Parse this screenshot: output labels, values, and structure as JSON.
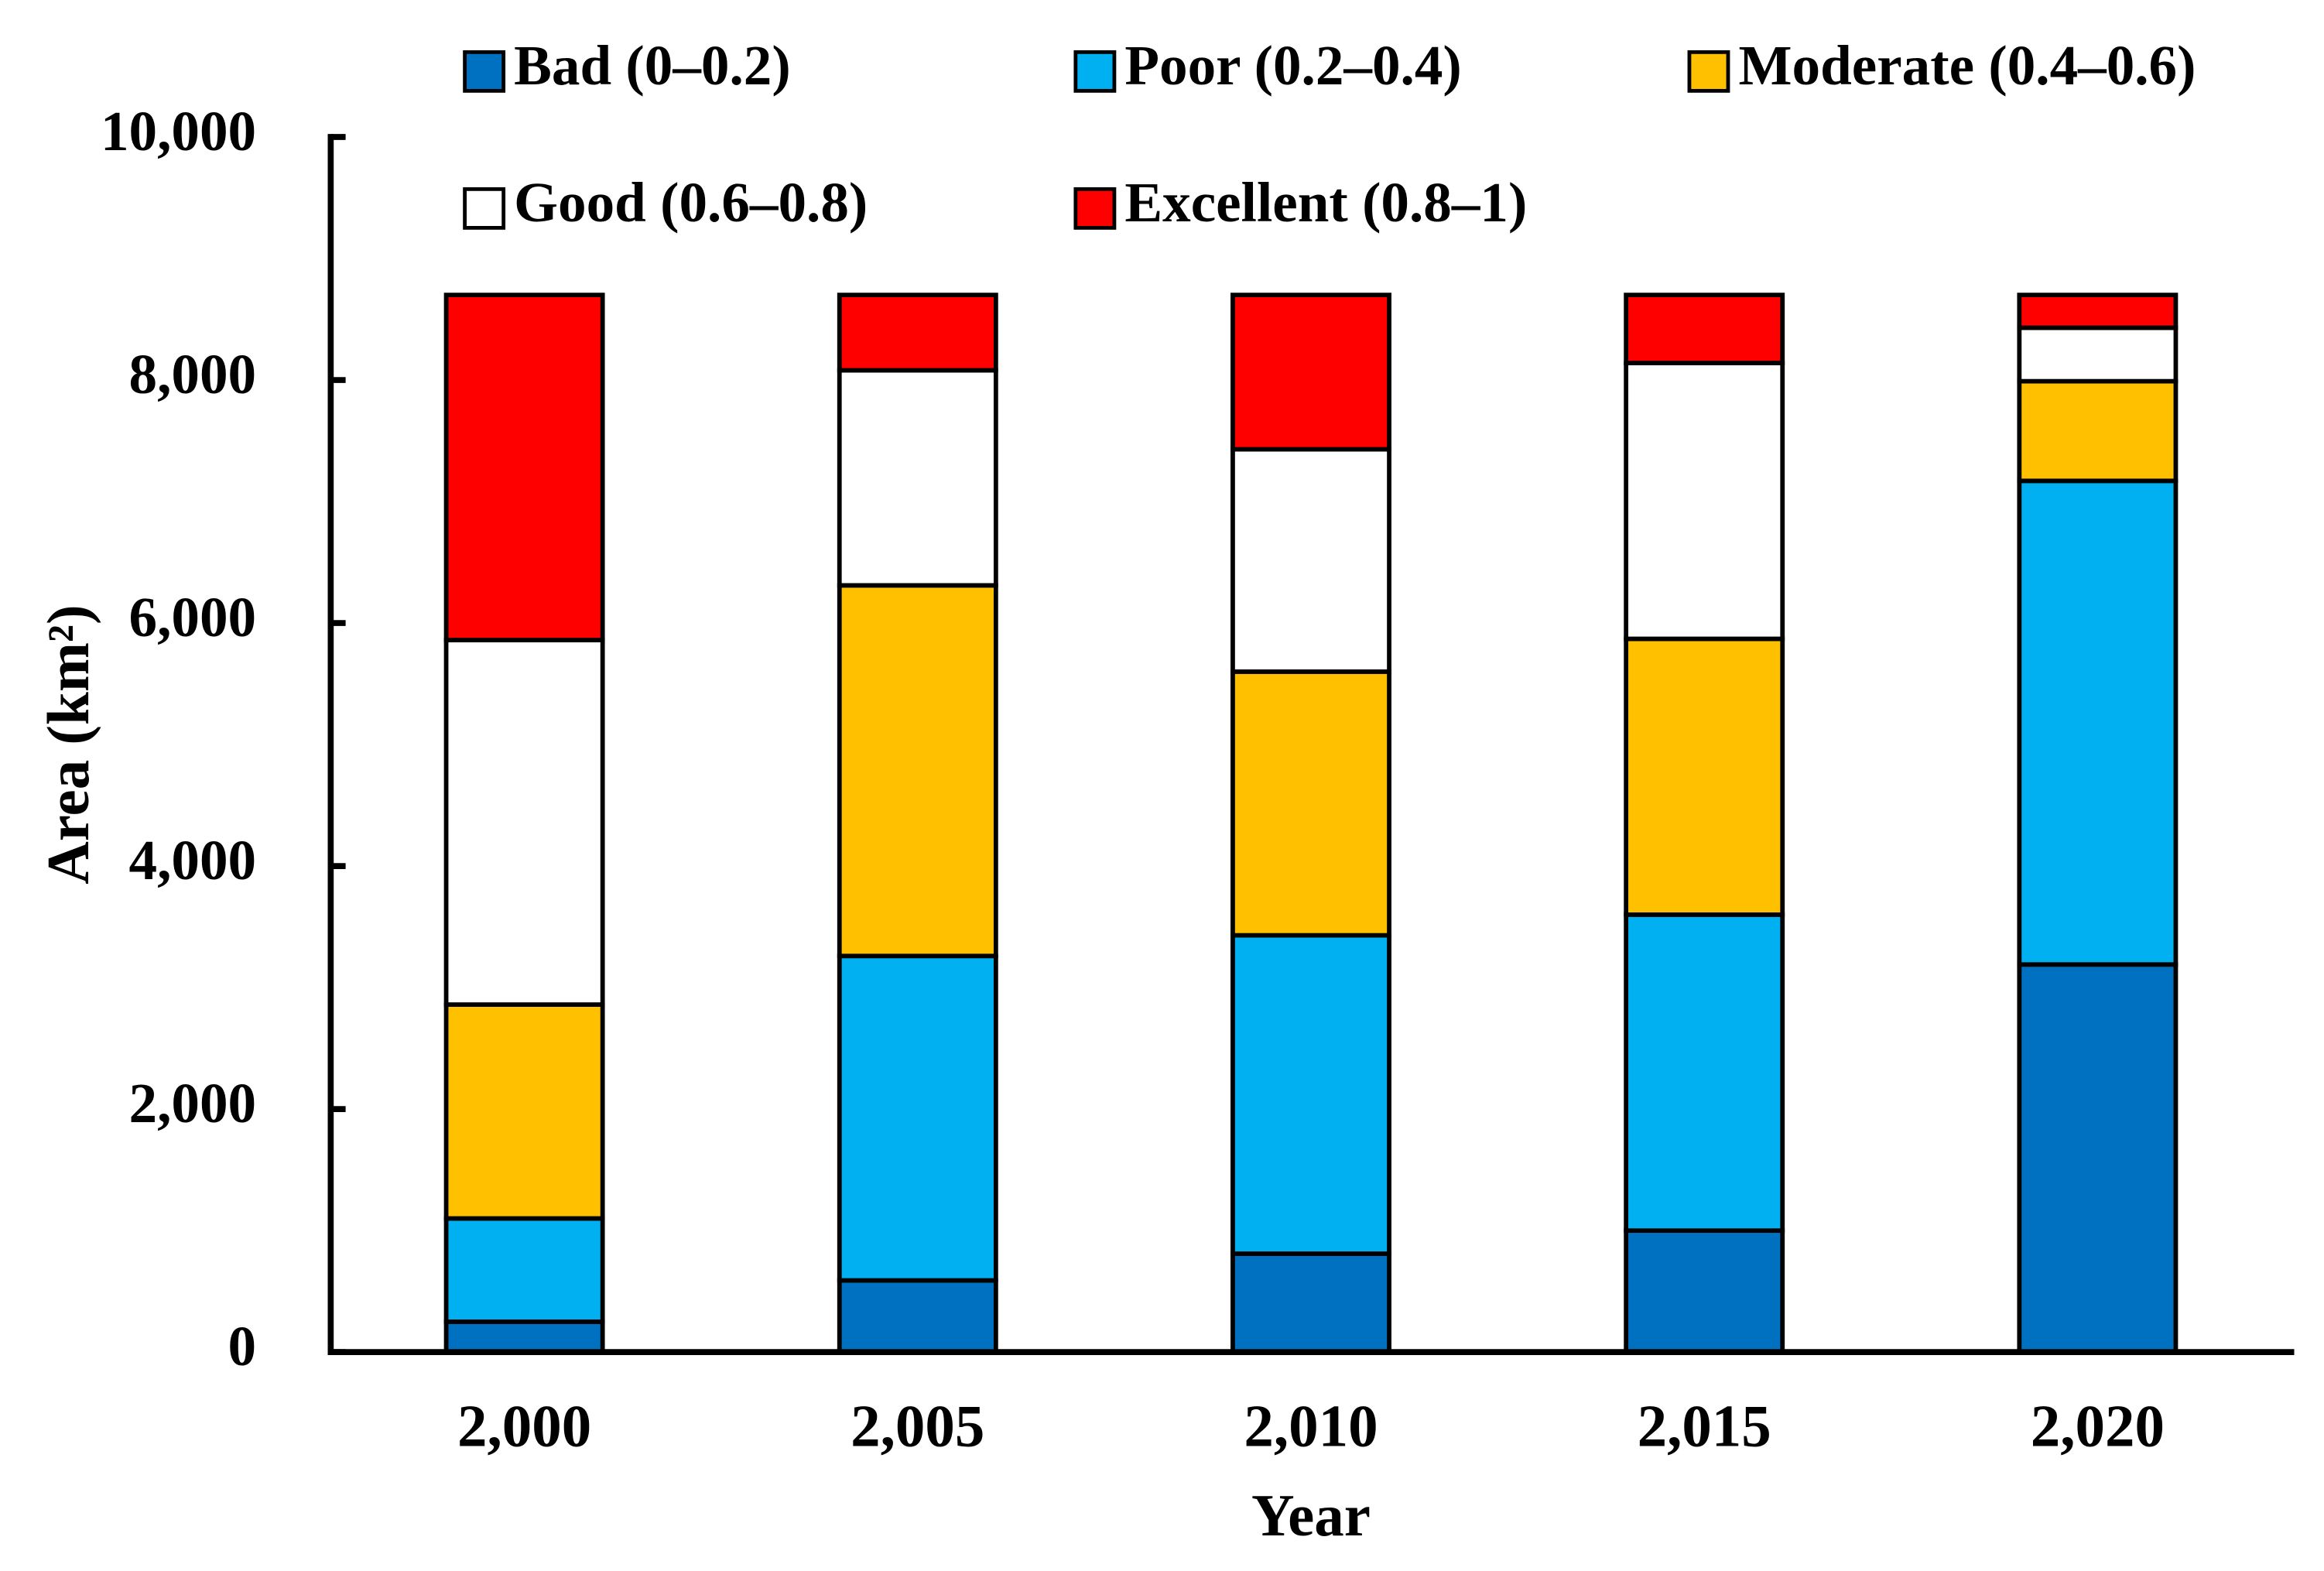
{
  "chart_data": {
    "type": "stacked_bar",
    "x_label": "Year",
    "y_label": "Area (km²)",
    "categories": [
      "2,000",
      "2,005",
      "2,010",
      "2,015",
      "2,020"
    ],
    "series": [
      {
        "name": "Bad (0–0.2)",
        "color": "#0070c0",
        "values": [
          250,
          590,
          810,
          1000,
          3190
        ]
      },
      {
        "name": "Poor (0.2–0.4)",
        "color": "#00b0f0",
        "values": [
          850,
          2670,
          2620,
          2600,
          3980
        ]
      },
      {
        "name": "Moderate (0.4–0.6)",
        "color": "#ffc000",
        "values": [
          1760,
          3050,
          2170,
          2270,
          820
        ]
      },
      {
        "name": "Good (0.6–0.8)",
        "color": "#ffffff",
        "values": [
          3000,
          1770,
          1830,
          2270,
          440
        ]
      },
      {
        "name": "Excellent (0.8–1)",
        "color": "#ff0000",
        "values": [
          2840,
          620,
          1270,
          560,
          270
        ]
      }
    ],
    "ylim": [
      0,
      10000
    ],
    "yticks": [
      0,
      {
        "value": 2000,
        "label": "2,000"
      },
      {
        "value": 4000,
        "label": "4,000"
      },
      {
        "value": 6000,
        "label": "6,000"
      },
      {
        "value": 8000,
        "label": "8,000"
      },
      {
        "value": 10000,
        "label": "10,000"
      }
    ],
    "legend": "top"
  }
}
